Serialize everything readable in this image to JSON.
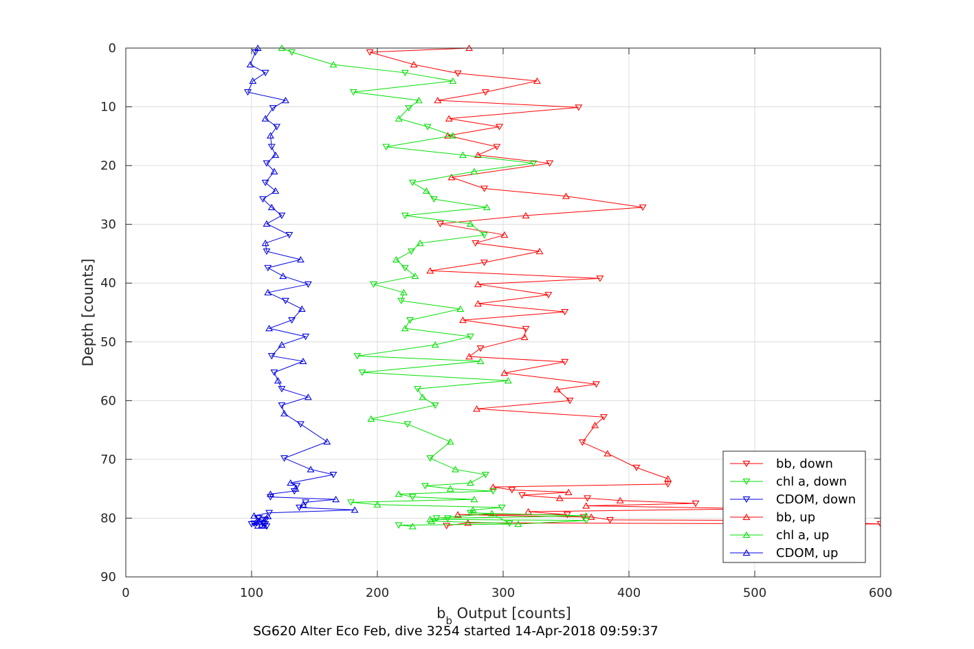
{
  "chart_data": {
    "type": "line",
    "title": "SG620 Alter Eco Feb, dive 3254 started 14-Apr-2018 09:59:37",
    "xlabel_main": "b",
    "xlabel_sub": "b",
    "xlabel_rest": " Output [counts]",
    "ylabel": "Depth [counts]",
    "xlim": [
      0,
      600
    ],
    "ylim": [
      0,
      90
    ],
    "y_reversed": true,
    "grid": true,
    "legend_position": "bottom-right",
    "xticks": [
      "0",
      "100",
      "200",
      "300",
      "400",
      "500",
      "600"
    ],
    "yticks": [
      "0",
      "10",
      "20",
      "30",
      "40",
      "50",
      "60",
      "70",
      "80",
      "90"
    ],
    "colors": {
      "bb": "#ff0000",
      "chl": "#00e000",
      "cdom": "#0000e0",
      "grid": "#dcdcdc",
      "axis": "#262626"
    },
    "series": [
      {
        "name": "bb, down",
        "color": "#ff0000",
        "marker": "down",
        "x": [
          273,
          194,
          229,
          264,
          327,
          286,
          248,
          360,
          257,
          297,
          256,
          295,
          280,
          337,
          259,
          285,
          350,
          411,
          318,
          250,
          301,
          278,
          329,
          285,
          242,
          377,
          280,
          336,
          280,
          349,
          268,
          318,
          317,
          282,
          273,
          349,
          301,
          374,
          343,
          353,
          279,
          380,
          373,
          363,
          383,
          406,
          431,
          431,
          292,
          307,
          352,
          315,
          345,
          367,
          393,
          453,
          366,
          505,
          320,
          351,
          264,
          364,
          370,
          385,
          530,
          600,
          272,
          255
        ],
        "y": [
          0,
          0.7,
          2.8,
          4.3,
          5.6,
          7.5,
          8.9,
          10.1,
          12.0,
          13.4,
          14.9,
          16.8,
          18.2,
          19.6,
          22.0,
          23.9,
          25.2,
          27.1,
          28.5,
          29.9,
          31.8,
          33.2,
          34.6,
          36.5,
          37.9,
          39.2,
          40.2,
          42.0,
          43.5,
          44.9,
          46.3,
          47.8,
          49.2,
          51.1,
          52.5,
          53.4,
          55.3,
          57.2,
          58.1,
          60.0,
          61.4,
          62.8,
          64.2,
          67.1,
          69.0,
          71.4,
          73.3,
          74.2,
          74.7,
          75.2,
          75.6,
          76.1,
          76.6,
          76.6,
          77.0,
          77.5,
          77.9,
          78.4,
          78.9,
          79.4,
          79.4,
          79.8,
          79.8,
          80.3,
          80.4,
          81.0,
          80.8,
          81.3
        ]
      },
      {
        "name": "chl a, down",
        "color": "#00e000",
        "marker": "down",
        "x": [
          124,
          132,
          165,
          222,
          260,
          181,
          233,
          225,
          217,
          240,
          260,
          207,
          268,
          324,
          277,
          228,
          239,
          245,
          287,
          222,
          274,
          285,
          234,
          227,
          215,
          222,
          230,
          197,
          221,
          219,
          266,
          226,
          222,
          274,
          246,
          184,
          282,
          188,
          304,
          232,
          236,
          246,
          195,
          224,
          258,
          242,
          262,
          286,
          274,
          238,
          258,
          292,
          217,
          228,
          277,
          179,
          200,
          299,
          276,
          274,
          366,
          256,
          243,
          305,
          291,
          247,
          242,
          366,
          312,
          217,
          228
        ],
        "y": [
          0,
          0.7,
          2.8,
          4.2,
          5.6,
          7.5,
          8.9,
          10.2,
          12.0,
          13.4,
          14.9,
          16.8,
          18.2,
          19.6,
          21.0,
          22.9,
          24.3,
          25.7,
          27.1,
          28.5,
          29.9,
          31.8,
          33.2,
          34.6,
          36.0,
          37.4,
          38.8,
          40.2,
          41.6,
          43.0,
          44.4,
          46.3,
          47.7,
          49.1,
          50.5,
          52.4,
          53.3,
          55.2,
          56.6,
          58.0,
          59.4,
          60.8,
          63.1,
          64.0,
          67.0,
          69.8,
          71.7,
          72.6,
          74.0,
          74.5,
          75.0,
          75.4,
          75.9,
          76.4,
          76.8,
          77.3,
          77.7,
          78.2,
          78.6,
          79.1,
          79.6,
          80.0,
          80.5,
          80.9,
          79.2,
          80.0,
          80.2,
          80.4,
          81.0,
          81.2,
          81.4
        ]
      },
      {
        "name": "CDOM, down",
        "color": "#0000e0",
        "marker": "down",
        "x": [
          105,
          103,
          99,
          111,
          101,
          97,
          127,
          117,
          111,
          120,
          115,
          116,
          119,
          112,
          118,
          111,
          119,
          109,
          116,
          124,
          112,
          130,
          111,
          112,
          139,
          113,
          125,
          145,
          113,
          127,
          140,
          132,
          114,
          143,
          124,
          116,
          141,
          118,
          121,
          124,
          145,
          124,
          126,
          139,
          160,
          126,
          147,
          165,
          131,
          136,
          135,
          134,
          115,
          115,
          167,
          143,
          141,
          138,
          182,
          114,
          102,
          105,
          110,
          102,
          105,
          100,
          104,
          106,
          113,
          111,
          106,
          109,
          108,
          112,
          110,
          111
        ],
        "y": [
          0,
          0.7,
          2.8,
          4.2,
          5.6,
          7.5,
          8.9,
          10.2,
          12.0,
          13.4,
          14.9,
          16.8,
          18.2,
          19.6,
          21.0,
          22.9,
          24.3,
          25.7,
          27.1,
          28.5,
          29.9,
          31.8,
          33.2,
          34.6,
          36.0,
          37.4,
          38.8,
          40.2,
          41.6,
          43.0,
          44.4,
          46.3,
          47.7,
          49.1,
          50.5,
          52.4,
          53.3,
          55.2,
          56.6,
          58.0,
          59.4,
          60.8,
          62.2,
          64.0,
          67.0,
          69.8,
          71.7,
          72.6,
          74.0,
          74.5,
          75.0,
          75.4,
          75.9,
          76.4,
          76.8,
          77.3,
          77.7,
          78.2,
          78.6,
          79.1,
          79.6,
          80.0,
          80.5,
          80.9,
          81.3,
          81.0,
          80.6,
          80.0,
          79.7,
          80.3,
          80.6,
          80.9,
          81.2,
          81.4,
          81.3,
          81.0
        ]
      }
    ],
    "legend": [
      {
        "label": "bb, down",
        "color": "#ff0000",
        "marker": "down"
      },
      {
        "label": "chl a, down",
        "color": "#00e000",
        "marker": "down"
      },
      {
        "label": "CDOM, down",
        "color": "#0000e0",
        "marker": "down"
      },
      {
        "label": "bb, up",
        "color": "#ff0000",
        "marker": "up"
      },
      {
        "label": "chl a, up",
        "color": "#00e000",
        "marker": "up"
      },
      {
        "label": "CDOM, up",
        "color": "#0000e0",
        "marker": "up"
      }
    ]
  }
}
